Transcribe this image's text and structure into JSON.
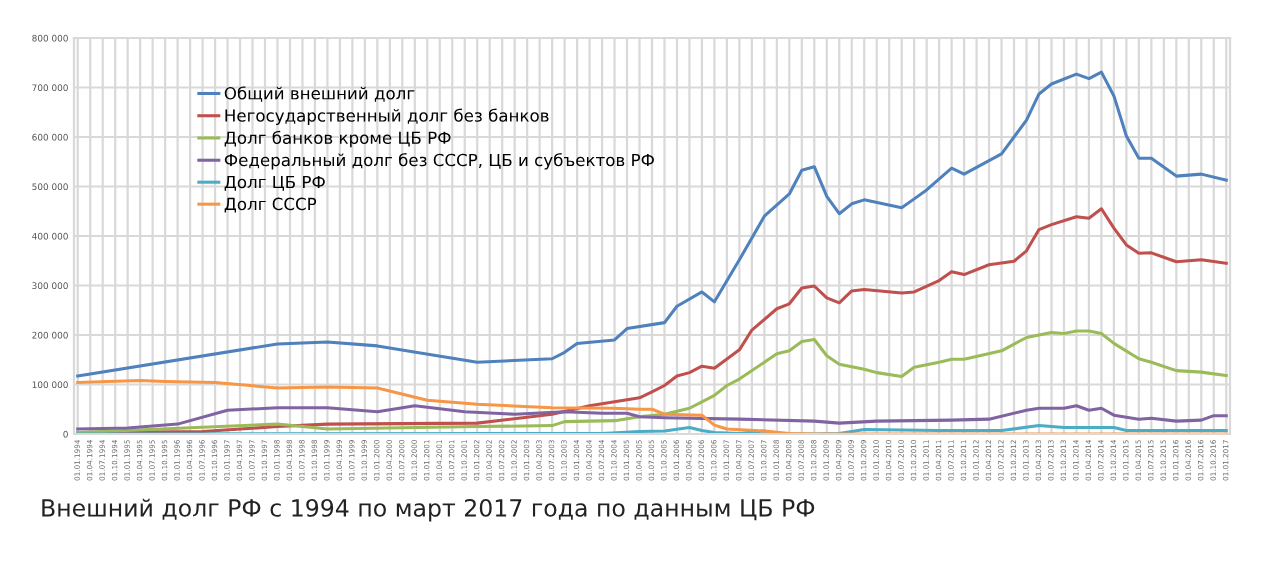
{
  "chart_data": {
    "type": "line",
    "categories": [
      "01.01.1994",
      "01.04.1994",
      "01.07.1994",
      "01.10.1994",
      "01.01.1995",
      "01.04.1995",
      "01.07.1995",
      "01.10.1995",
      "01.01.1996",
      "01.04.1996",
      "01.07.1996",
      "01.10.1996",
      "01.01.1997",
      "01.04.1997",
      "01.07.1997",
      "01.10.1997",
      "01.01.1998",
      "01.04.1998",
      "01.07.1998",
      "01.10.1998",
      "01.01.1999",
      "01.04.1999",
      "01.07.1999",
      "01.10.1999",
      "01.01.2000",
      "01.04.2000",
      "01.07.2000",
      "01.10.2000",
      "01.01.2001",
      "01.04.2001",
      "01.07.2001",
      "01.10.2001",
      "01.01.2002",
      "01.04.2002",
      "01.07.2002",
      "01.10.2002",
      "01.01.2003",
      "01.04.2003",
      "01.07.2003",
      "01.10.2003",
      "01.01.2004",
      "01.04.2004",
      "01.07.2004",
      "01.10.2004",
      "01.01.2005",
      "01.04.2005",
      "01.07.2005",
      "01.10.2005",
      "01.01.2006",
      "01.04.2006",
      "01.07.2006",
      "01.10.2006",
      "01.01.2007",
      "01.04.2007",
      "01.07.2007",
      "01.10.2007",
      "01.01.2008",
      "01.04.2008",
      "01.07.2008",
      "01.10.2008",
      "01.01.2009",
      "01.04.2009",
      "01.07.2009",
      "01.10.2009",
      "01.01.2010",
      "01.04.2010",
      "01.07.2010",
      "01.10.2010",
      "01.01.2011",
      "01.04.2011",
      "01.07.2011",
      "01.10.2011",
      "01.01.2012",
      "01.04.2012",
      "01.07.2012",
      "01.10.2012",
      "01.01.2013",
      "01.04.2013",
      "01.07.2013",
      "01.10.2013",
      "01.01.2014",
      "01.04.2014",
      "01.07.2014",
      "01.10.2014",
      "01.01.2015",
      "01.04.2015",
      "01.07.2015",
      "01.10.2015",
      "01.01.2016",
      "01.04.2016",
      "01.07.2016",
      "01.10.2016",
      "01.01.2017"
    ],
    "series": [
      {
        "name": "Общий внешний долг",
        "color": "#4f81bd",
        "x": [
          "01.01.1994",
          "01.01.1998",
          "01.01.1999",
          "01.01.2000",
          "01.01.2002",
          "01.07.2003",
          "01.10.2003",
          "01.01.2004",
          "01.10.2004",
          "01.01.2005",
          "01.10.2005",
          "01.01.2006",
          "01.07.2006",
          "01.10.2006",
          "01.04.2007",
          "01.10.2007",
          "01.04.2008",
          "01.07.2008",
          "01.10.2008",
          "01.01.2009",
          "01.04.2009",
          "01.07.2009",
          "01.10.2009",
          "01.07.2010",
          "01.10.2010",
          "01.01.2011",
          "01.07.2011",
          "01.10.2011",
          "01.07.2012",
          "01.01.2013",
          "01.04.2013",
          "01.07.2013",
          "01.01.2014",
          "01.04.2014",
          "01.07.2014",
          "01.10.2014",
          "01.01.2015",
          "01.04.2015",
          "01.07.2015",
          "01.01.2016",
          "01.07.2016",
          "01.01.2017"
        ],
        "values": [
          117000,
          182000,
          186000,
          178000,
          145000,
          152000,
          165000,
          183000,
          190000,
          213000,
          225000,
          258000,
          287000,
          267000,
          352000,
          440000,
          485000,
          533000,
          540000,
          480000,
          445000,
          465000,
          473000,
          457000,
          475000,
          493000,
          537000,
          525000,
          566000,
          634000,
          687000,
          707000,
          727000,
          718000,
          731000,
          683000,
          602000,
          557000,
          557000,
          521000,
          525000,
          513000
        ]
      },
      {
        "name": "Негосударственный долг без банков",
        "color": "#c0504d",
        "x": [
          "01.01.1994",
          "01.07.1996",
          "01.01.1998",
          "01.01.1999",
          "01.01.2002",
          "01.07.2003",
          "01.04.2004",
          "01.10.2004",
          "01.04.2005",
          "01.07.2005",
          "01.10.2005",
          "01.01.2006",
          "01.04.2006",
          "01.07.2006",
          "01.10.2006",
          "01.04.2007",
          "01.07.2007",
          "01.01.2008",
          "01.04.2008",
          "01.07.2008",
          "01.10.2008",
          "01.01.2009",
          "01.04.2009",
          "01.07.2009",
          "01.10.2009",
          "01.07.2010",
          "01.10.2010",
          "01.04.2011",
          "01.07.2011",
          "01.10.2011",
          "01.04.2012",
          "01.10.2012",
          "01.01.2013",
          "01.04.2013",
          "01.07.2013",
          "01.01.2014",
          "01.04.2014",
          "01.07.2014",
          "01.10.2014",
          "01.01.2015",
          "01.04.2015",
          "01.07.2015",
          "01.01.2016",
          "01.07.2016",
          "01.01.2017"
        ],
        "values": [
          3000,
          5000,
          15000,
          20000,
          22000,
          40000,
          57000,
          65000,
          73000,
          85000,
          98000,
          117000,
          124000,
          137000,
          133000,
          170000,
          210000,
          253000,
          263000,
          295000,
          299000,
          275000,
          265000,
          289000,
          292000,
          285000,
          287000,
          310000,
          328000,
          322000,
          342000,
          349000,
          370000,
          413000,
          423000,
          439000,
          436000,
          455000,
          416000,
          382000,
          365000,
          366000,
          348000,
          352000,
          345000
        ]
      },
      {
        "name": "Долг банков кроме ЦБ РФ",
        "color": "#9bbb59",
        "x": [
          "01.01.1994",
          "01.01.1998",
          "01.01.1999",
          "01.01.2002",
          "01.07.2003",
          "01.10.2003",
          "01.10.2004",
          "01.04.2005",
          "01.10.2005",
          "01.04.2006",
          "01.07.2006",
          "01.10.2006",
          "01.01.2007",
          "01.04.2007",
          "01.10.2007",
          "01.01.2008",
          "01.04.2008",
          "01.07.2008",
          "01.10.2008",
          "01.01.2009",
          "01.04.2009",
          "01.10.2009",
          "01.01.2010",
          "01.07.2010",
          "01.10.2010",
          "01.04.2011",
          "01.07.2011",
          "01.10.2011",
          "01.07.2012",
          "01.01.2013",
          "01.07.2013",
          "01.10.2013",
          "01.01.2014",
          "01.04.2014",
          "01.07.2014",
          "01.10.2014",
          "01.04.2015",
          "01.07.2015",
          "01.01.2016",
          "01.07.2016",
          "01.01.2017"
        ],
        "values": [
          3000,
          20000,
          10000,
          15000,
          17000,
          25000,
          27000,
          35000,
          40000,
          52000,
          65000,
          78000,
          98000,
          111000,
          145000,
          162000,
          168000,
          187000,
          191000,
          158000,
          141000,
          131000,
          124000,
          116000,
          135000,
          145000,
          151000,
          151000,
          168000,
          195000,
          205000,
          203000,
          208000,
          208000,
          203000,
          183000,
          152000,
          145000,
          128000,
          125000,
          118000
        ]
      },
      {
        "name": "Федеральный долг без СССР, ЦБ и субъектов РФ",
        "color": "#8064a2",
        "x": [
          "01.01.1994",
          "01.01.1995",
          "01.01.1996",
          "01.01.1997",
          "01.01.1998",
          "01.01.1999",
          "01.01.2000",
          "01.10.2000",
          "01.10.2001",
          "01.10.2002",
          "01.10.2003",
          "01.07.2004",
          "01.01.2005",
          "01.04.2005",
          "01.10.2005",
          "01.04.2007",
          "01.10.2008",
          "01.04.2009",
          "01.01.2010",
          "01.07.2011",
          "01.04.2012",
          "01.01.2013",
          "01.04.2013",
          "01.10.2013",
          "01.01.2014",
          "01.04.2014",
          "01.07.2014",
          "01.10.2014",
          "01.04.2015",
          "01.07.2015",
          "01.01.2016",
          "01.07.2016",
          "01.10.2016",
          "01.01.2017"
        ],
        "values": [
          10000,
          12000,
          20000,
          48000,
          53000,
          53000,
          45000,
          57000,
          45000,
          40000,
          45000,
          42000,
          42000,
          35000,
          33000,
          30000,
          26000,
          22000,
          26000,
          28000,
          30000,
          48000,
          52000,
          52000,
          57000,
          48000,
          52000,
          38000,
          30000,
          32000,
          26000,
          28000,
          37000,
          37000
        ]
      },
      {
        "name": "Долг ЦБ РФ",
        "color": "#4bacc6",
        "x": [
          "01.01.1994",
          "01.07.2004",
          "01.04.2005",
          "01.10.2005",
          "01.04.2006",
          "01.07.2006",
          "01.10.2006",
          "01.04.2007",
          "01.10.2007",
          "01.01.2008",
          "01.10.2008",
          "01.04.2009",
          "01.10.2009",
          "01.04.2011",
          "01.07.2012",
          "01.04.2013",
          "01.10.2013",
          "01.10.2014",
          "01.01.2015",
          "01.01.2017"
        ],
        "values": [
          0,
          1000,
          5000,
          6000,
          13000,
          7000,
          3000,
          1000,
          6000,
          0,
          0,
          1000,
          9000,
          7000,
          7000,
          17000,
          13000,
          13000,
          7000,
          7000
        ]
      },
      {
        "name": "Долг СССР",
        "color": "#f79646",
        "x": [
          "01.01.1994",
          "01.04.1995",
          "01.10.1995",
          "01.10.1996",
          "01.01.1998",
          "01.01.1999",
          "01.01.2000",
          "01.01.2001",
          "01.01.2002",
          "01.07.2003",
          "01.10.2004",
          "01.04.2005",
          "01.07.2005",
          "01.10.2005",
          "01.07.2006",
          "01.10.2006",
          "01.01.2007",
          "01.10.2007",
          "01.04.2008",
          "01.10.2008",
          "01.01.2017"
        ],
        "values": [
          104000,
          108000,
          106000,
          104000,
          93000,
          95000,
          93000,
          68000,
          60000,
          53000,
          52000,
          50000,
          50000,
          40000,
          38000,
          18000,
          10000,
          6000,
          1000,
          0,
          0
        ]
      }
    ],
    "ylim": [
      0,
      800000
    ],
    "yticks": [
      0,
      {
        "value": 100000,
        "label": "100 000"
      },
      {
        "value": 200000,
        "label": "200 000"
      },
      {
        "value": 300000,
        "label": "300 000"
      },
      {
        "value": 400000,
        "label": "400 000"
      },
      {
        "value": 500000,
        "label": "500 000"
      },
      {
        "value": 600000,
        "label": "600 000"
      },
      {
        "value": 700000,
        "label": "700 000"
      },
      {
        "value": 800000,
        "label": "800 000"
      }
    ],
    "grid": true,
    "legend": "top left",
    "marker": "none",
    "line_style": "solid",
    "annotations": [
      "Внешний долг РФ с 1994 по март 2017 года по данным ЦБ РФ"
    ]
  }
}
